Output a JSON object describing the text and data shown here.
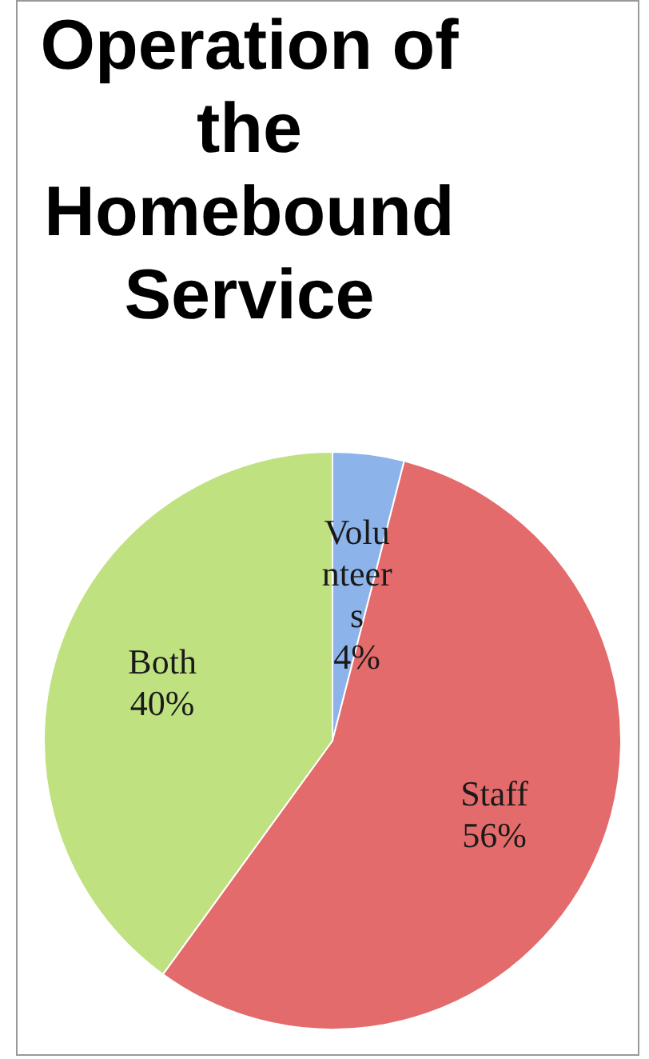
{
  "chart_data": {
    "type": "pie",
    "title": "Operation of the Homebound Service",
    "categories": [
      "Volunteers",
      "Staff",
      "Both"
    ],
    "values": [
      4,
      56,
      40
    ],
    "value_labels": [
      "4%",
      "56%",
      "40%"
    ],
    "colors": [
      "#8cb3ea",
      "#e36b6b",
      "#bfe17f"
    ],
    "legend": false
  }
}
